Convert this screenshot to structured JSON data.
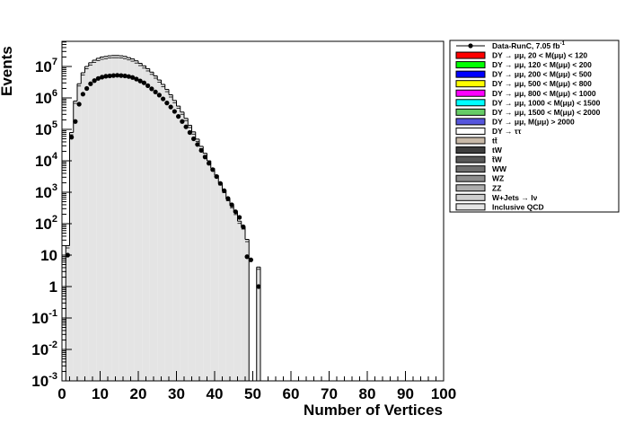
{
  "chart_data": {
    "type": "bar",
    "xlabel": "Number of Vertices",
    "ylabel": "Events",
    "xlim": [
      0,
      100
    ],
    "ylim_log10": [
      -3,
      7.8
    ],
    "log_y": true,
    "grid": false,
    "legend_position": "top-right outside plot",
    "x_tick_labels": [
      "0",
      "10",
      "20",
      "30",
      "40",
      "50",
      "60",
      "70",
      "80",
      "90",
      "100"
    ],
    "y_tick_labels": [
      {
        "exp": -3,
        "base": "10",
        "sup": "-3"
      },
      {
        "exp": -2,
        "base": "10",
        "sup": "-2"
      },
      {
        "exp": -1,
        "base": "10",
        "sup": "-1"
      },
      {
        "exp": 0,
        "base": "1",
        "sup": ""
      },
      {
        "exp": 1,
        "base": "10",
        "sup": ""
      },
      {
        "exp": 2,
        "base": "10",
        "sup": "2"
      },
      {
        "exp": 3,
        "base": "10",
        "sup": "3"
      },
      {
        "exp": 4,
        "base": "10",
        "sup": "4"
      },
      {
        "exp": 5,
        "base": "10",
        "sup": "5"
      },
      {
        "exp": 6,
        "base": "10",
        "sup": "6"
      },
      {
        "exp": 7,
        "base": "10",
        "sup": "7"
      }
    ],
    "bins": [
      0,
      1,
      2,
      3,
      4,
      5,
      6,
      7,
      8,
      9,
      10,
      11,
      12,
      13,
      14,
      15,
      16,
      17,
      18,
      19,
      20,
      21,
      22,
      23,
      24,
      25,
      26,
      27,
      28,
      29,
      30,
      31,
      32,
      33,
      34,
      35,
      36,
      37,
      38,
      39,
      40,
      41,
      42,
      43,
      44,
      45,
      46,
      47,
      48,
      49,
      50,
      51,
      52
    ],
    "mc_stack_log10": [
      null,
      1.3,
      4.9,
      5.9,
      6.45,
      6.8,
      7.0,
      7.12,
      7.2,
      7.26,
      7.3,
      7.32,
      7.34,
      7.35,
      7.35,
      7.34,
      7.32,
      7.28,
      7.24,
      7.18,
      7.1,
      7.02,
      6.93,
      6.82,
      6.7,
      6.57,
      6.43,
      6.27,
      6.1,
      5.92,
      5.74,
      5.55,
      5.35,
      5.13,
      4.92,
      4.69,
      4.46,
      4.24,
      4.0,
      3.76,
      3.54,
      3.3,
      3.06,
      2.8,
      2.58,
      2.36,
      2.08,
      1.9,
      1.5,
      null,
      null,
      0.62,
      null
    ],
    "data_log10": [
      null,
      1.0,
      4.75,
      5.25,
      5.8,
      6.12,
      6.3,
      6.45,
      6.55,
      6.62,
      6.66,
      6.69,
      6.7,
      6.71,
      6.72,
      6.71,
      6.7,
      6.68,
      6.65,
      6.6,
      6.54,
      6.48,
      6.39,
      6.29,
      6.19,
      6.09,
      5.97,
      5.84,
      5.71,
      5.57,
      5.41,
      5.25,
      5.08,
      4.9,
      4.7,
      4.52,
      4.33,
      4.12,
      3.92,
      3.72,
      3.5,
      3.28,
      3.05,
      2.8,
      2.6,
      2.38,
      2.2,
      1.9,
      0.95,
      0.85,
      null,
      0.0,
      null
    ],
    "legend": [
      {
        "label": "Data-RunC, 7.05 fb",
        "sup": "-1",
        "color": "#000000",
        "kind": "marker"
      },
      {
        "label": "DY → μμ, 20 < M(μμ) <  120",
        "sup": "",
        "color": "#ff0000",
        "kind": "box"
      },
      {
        "label": "DY → μμ, 120 < M(μμ) <  200",
        "sup": "",
        "color": "#00ff00",
        "kind": "box"
      },
      {
        "label": "DY → μμ, 200 < M(μμ) <  500",
        "sup": "",
        "color": "#0000ff",
        "kind": "box"
      },
      {
        "label": "DY → μμ, 500 < M(μμ) <  800",
        "sup": "",
        "color": "#ffff00",
        "kind": "box"
      },
      {
        "label": "DY → μμ, 800 < M(μμ) < 1000",
        "sup": "",
        "color": "#ff00ff",
        "kind": "box"
      },
      {
        "label": "DY → μμ, 1000 < M(μμ) < 1500",
        "sup": "",
        "color": "#00ffff",
        "kind": "box"
      },
      {
        "label": "DY → μμ, 1500 < M(μμ) < 2000",
        "sup": "",
        "color": "#66cc66",
        "kind": "box"
      },
      {
        "label": "DY → μμ, M(μμ) > 2000",
        "sup": "",
        "color": "#5555dd",
        "kind": "box"
      },
      {
        "label": "DY → ττ",
        "sup": "",
        "color": "#ffffff",
        "kind": "box"
      },
      {
        "label": "tt̄",
        "sup": "",
        "color": "#c8b9a8",
        "kind": "box"
      },
      {
        "label": "tW",
        "sup": "",
        "color": "#3d3d3d",
        "kind": "box"
      },
      {
        "label": "t̄W",
        "sup": "",
        "color": "#575757",
        "kind": "box"
      },
      {
        "label": "WW",
        "sup": "",
        "color": "#6e6e6e",
        "kind": "box"
      },
      {
        "label": "WZ",
        "sup": "",
        "color": "#8c8c8c",
        "kind": "box"
      },
      {
        "label": "ZZ",
        "sup": "",
        "color": "#adadad",
        "kind": "box"
      },
      {
        "label": "W+Jets → lν",
        "sup": "",
        "color": "#cfcfcf",
        "kind": "box"
      },
      {
        "label": "Inclusive QCD",
        "sup": "",
        "color": "#e4e4e4",
        "kind": "box"
      }
    ]
  }
}
